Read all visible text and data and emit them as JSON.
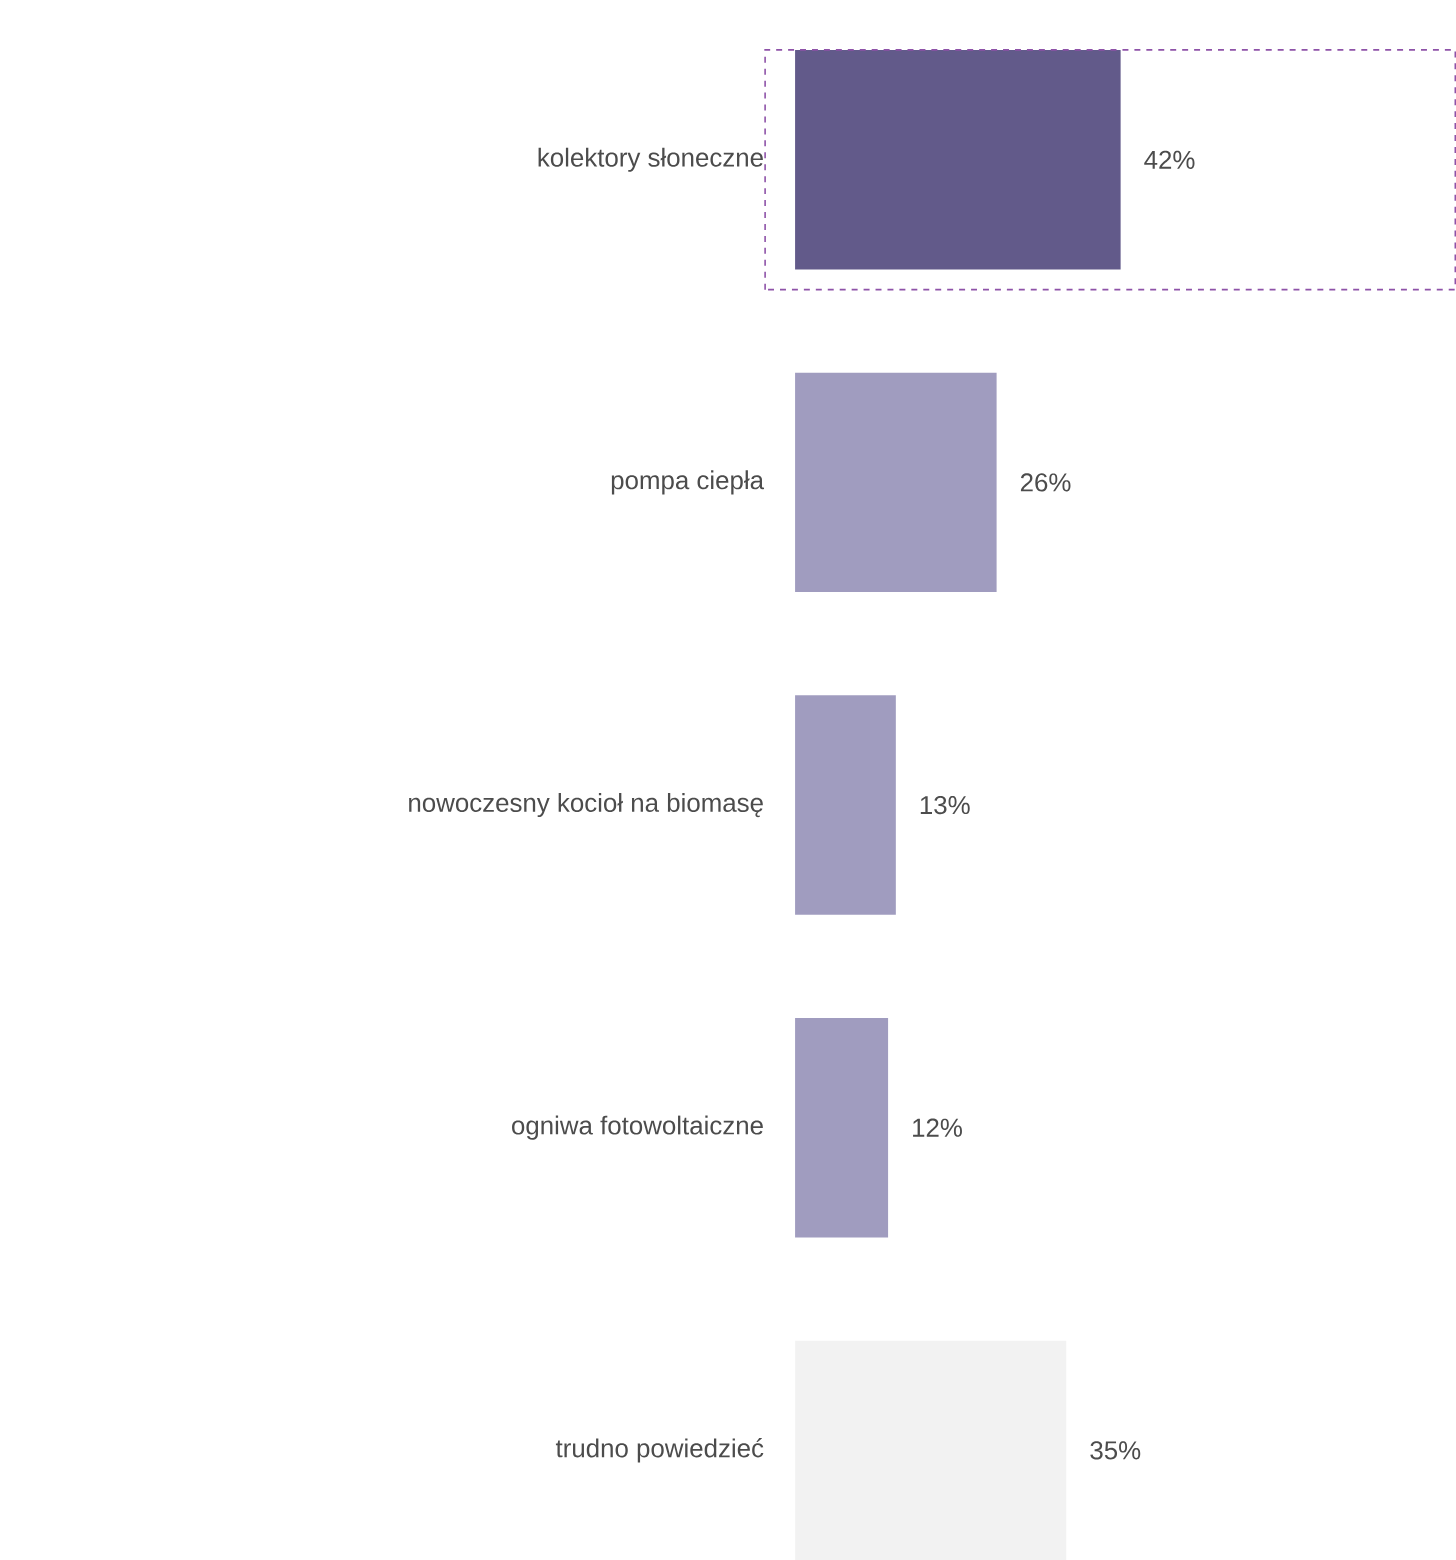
{
  "chart_data": {
    "type": "bar",
    "orientation": "horizontal",
    "categories": [
      "kolektory słoneczne",
      "pompa ciepła",
      "nowoczesny kocioł na biomasę",
      "ogniwa fotowoltaiczne",
      "trudno powiedzieć"
    ],
    "values": [
      42,
      26,
      13,
      12,
      35
    ],
    "value_labels": [
      "42%",
      "26%",
      "13%",
      "12%",
      "35%"
    ],
    "colors": [
      "#625a8a",
      "#a09cbf",
      "#a09cbf",
      "#a09cbf",
      "#f2f2f2"
    ]
  }
}
